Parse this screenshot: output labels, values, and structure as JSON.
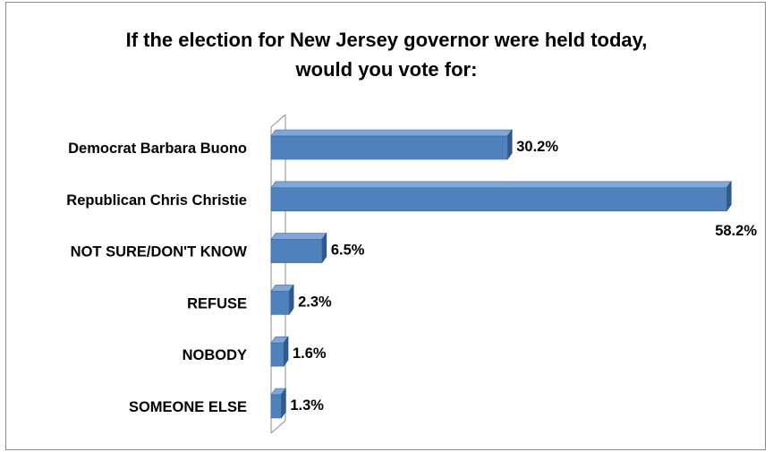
{
  "chart_data": {
    "type": "bar",
    "orientation": "horizontal",
    "title": "If the election for New Jersey governor were held today, would you vote for:",
    "title_lines": [
      "If the election for New Jersey governor were held today,",
      "would you vote for:"
    ],
    "categories": [
      "Democrat Barbara Buono",
      "Republican Chris Christie",
      "NOT SURE/DON'T KNOW",
      "REFUSE",
      "NOBODY",
      "SOMEONE ELSE"
    ],
    "values": [
      30.2,
      58.2,
      6.5,
      2.3,
      1.6,
      1.3
    ],
    "value_labels": [
      "30.2%",
      "58.2%",
      "6.5%",
      "2.3%",
      "1.6%",
      "1.3%"
    ],
    "xlim": [
      0,
      61
    ],
    "grid": false,
    "legend": "none",
    "bar_color": "#4f81bd"
  }
}
